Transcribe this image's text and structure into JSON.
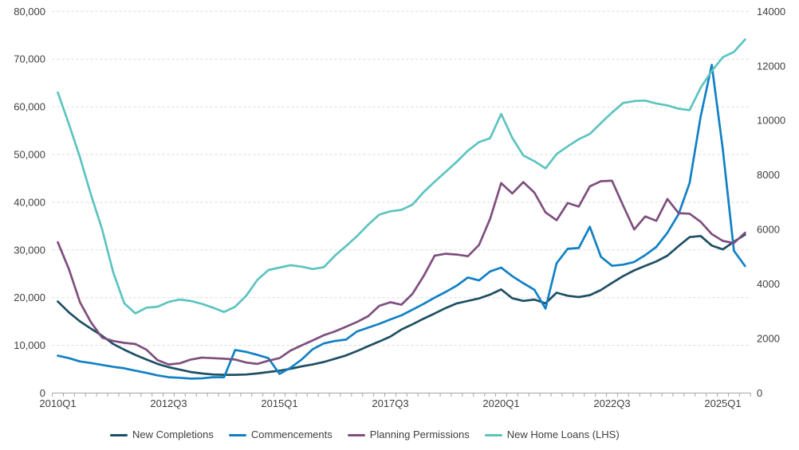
{
  "chart_data": {
    "type": "line",
    "title": "",
    "x": [
      "2010Q1",
      "2010Q2",
      "2010Q3",
      "2010Q4",
      "2011Q1",
      "2011Q2",
      "2011Q3",
      "2011Q4",
      "2012Q1",
      "2012Q2",
      "2012Q3",
      "2012Q4",
      "2013Q1",
      "2013Q2",
      "2013Q3",
      "2013Q4",
      "2014Q1",
      "2014Q2",
      "2014Q3",
      "2014Q4",
      "2015Q1",
      "2015Q2",
      "2015Q3",
      "2015Q4",
      "2016Q1",
      "2016Q2",
      "2016Q3",
      "2016Q4",
      "2017Q1",
      "2017Q2",
      "2017Q3",
      "2017Q4",
      "2018Q1",
      "2018Q2",
      "2018Q3",
      "2018Q4",
      "2019Q1",
      "2019Q2",
      "2019Q3",
      "2019Q4",
      "2020Q1",
      "2020Q2",
      "2020Q3",
      "2020Q4",
      "2021Q1",
      "2021Q2",
      "2021Q3",
      "2021Q4",
      "2022Q1",
      "2022Q2",
      "2022Q3",
      "2022Q4",
      "2023Q1",
      "2023Q2",
      "2023Q3",
      "2023Q4",
      "2024Q1",
      "2024Q2",
      "2024Q3",
      "2024Q4",
      "2025Q1",
      "2025Q2",
      "2025Q3"
    ],
    "x_axis": {
      "shown_label_indices": [
        0,
        10,
        20,
        30,
        40,
        50,
        60
      ],
      "shown_labels": [
        "2010Q1",
        "2012Q3",
        "2015Q1",
        "2017Q3",
        "2020Q1",
        "2022Q3",
        "2025Q1"
      ]
    },
    "left_axis": {
      "min": 0,
      "max": 80000,
      "tick_step": 10000,
      "tick_labels": [
        "0",
        "10,000",
        "20,000",
        "30,000",
        "40,000",
        "50,000",
        "60,000",
        "70,000",
        "80,000"
      ]
    },
    "right_axis": {
      "min": 0,
      "max": 14000,
      "tick_step": 2000,
      "tick_labels": [
        "0",
        "2000",
        "4000",
        "6000",
        "8000",
        "10000",
        "12000",
        "14000"
      ]
    },
    "grid": {
      "horizontal": true,
      "vertical": false,
      "style": "dashed",
      "color": "#d9d9d9"
    },
    "legend_position": "bottom",
    "series": [
      {
        "name": "New Completions",
        "axis": "right",
        "color": "#1E4F63",
        "values": [
          3360,
          2960,
          2630,
          2360,
          2100,
          1800,
          1590,
          1400,
          1230,
          1070,
          950,
          860,
          770,
          720,
          680,
          670,
          670,
          680,
          720,
          770,
          820,
          890,
          980,
          1050,
          1140,
          1260,
          1380,
          1540,
          1720,
          1890,
          2070,
          2330,
          2520,
          2730,
          2920,
          3120,
          3290,
          3380,
          3470,
          3610,
          3800,
          3480,
          3380,
          3430,
          3290,
          3680,
          3570,
          3520,
          3590,
          3780,
          4040,
          4290,
          4500,
          4670,
          4830,
          5040,
          5390,
          5720,
          5760,
          5410,
          5270,
          5550,
          5810
        ]
      },
      {
        "name": "Commencements",
        "axis": "right",
        "color": "#1180C5",
        "values": [
          1370,
          1280,
          1160,
          1100,
          1030,
          960,
          910,
          820,
          740,
          650,
          580,
          560,
          530,
          540,
          580,
          580,
          1580,
          1510,
          1400,
          1280,
          700,
          930,
          1230,
          1610,
          1820,
          1910,
          1960,
          2260,
          2400,
          2540,
          2700,
          2850,
          3060,
          3270,
          3500,
          3710,
          3940,
          4240,
          4130,
          4460,
          4600,
          4290,
          4030,
          3790,
          3100,
          4760,
          5290,
          5320,
          6100,
          5000,
          4670,
          4710,
          4810,
          5060,
          5360,
          5880,
          6560,
          7700,
          10150,
          12040,
          8930,
          5220,
          4660
        ]
      },
      {
        "name": "Planning Permissions",
        "axis": "right",
        "color": "#7E4F7E",
        "values": [
          5530,
          4550,
          3330,
          2590,
          2030,
          1910,
          1840,
          1800,
          1590,
          1210,
          1050,
          1090,
          1230,
          1300,
          1280,
          1260,
          1230,
          1120,
          1070,
          1190,
          1280,
          1560,
          1750,
          1930,
          2120,
          2260,
          2430,
          2610,
          2820,
          3200,
          3330,
          3240,
          3640,
          4290,
          5040,
          5110,
          5080,
          5020,
          5430,
          6390,
          7700,
          7320,
          7740,
          7350,
          6630,
          6340,
          6970,
          6840,
          7580,
          7770,
          7790,
          6880,
          6000,
          6480,
          6320,
          7120,
          6600,
          6580,
          6280,
          5830,
          5580,
          5500,
          5880
        ]
      },
      {
        "name": "New Home Loans (LHS)",
        "axis": "left",
        "color": "#5CC4C0",
        "values": [
          63000,
          56400,
          49400,
          41500,
          34300,
          25300,
          18800,
          16700,
          17900,
          18100,
          19100,
          19600,
          19300,
          18700,
          17900,
          17000,
          18100,
          20400,
          23700,
          25800,
          26300,
          26800,
          26500,
          26000,
          26400,
          28800,
          30800,
          32900,
          35300,
          37400,
          38100,
          38400,
          39500,
          42100,
          44300,
          46400,
          48500,
          50800,
          52600,
          53400,
          58500,
          53500,
          49800,
          48600,
          47100,
          50100,
          51700,
          53200,
          54300,
          56600,
          58800,
          60800,
          61200,
          61300,
          60700,
          60300,
          59600,
          59300,
          64000,
          67500,
          70400,
          71500,
          74100
        ]
      }
    ]
  },
  "style": {
    "axis_text_color": "#3F3F3F",
    "axis_line_color": "#A6A6A6",
    "gridline_color": "#D9D9D9",
    "background": "#FFFFFF"
  }
}
